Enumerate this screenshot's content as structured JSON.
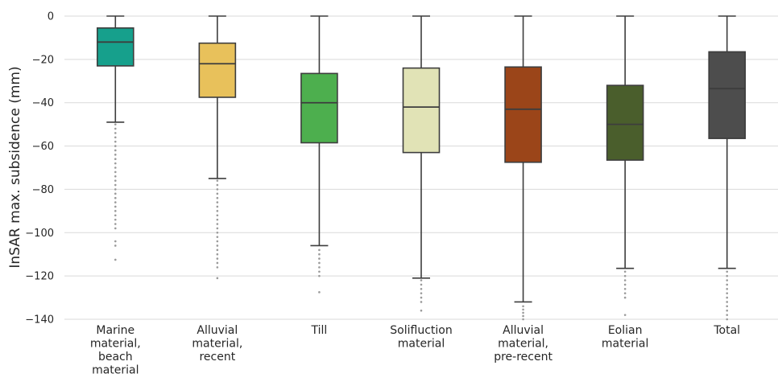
{
  "chart_data": {
    "type": "box",
    "title": "",
    "xlabel": "",
    "ylabel": "InSAR max. subsidence (mm)",
    "ylim": [
      -140,
      5
    ],
    "yticks": [
      0,
      -20,
      -40,
      -60,
      -80,
      -100,
      -120,
      -140
    ],
    "ytick_labels": [
      "0",
      "−20",
      "−40",
      "−60",
      "−80",
      "−100",
      "−120",
      "−140"
    ],
    "grid": "horizontal",
    "boxes": [
      {
        "label_lines": [
          "Marine",
          "material,",
          "beach",
          "material"
        ],
        "color": "#16a08c",
        "whisker_high": 0,
        "q3": -5.5,
        "median": -12,
        "q1": -23,
        "whisker_low": -49,
        "outliers": [
          -50,
          -52,
          -54,
          -56,
          -58,
          -60,
          -62,
          -64,
          -66,
          -68,
          -70,
          -72,
          -74,
          -76,
          -78,
          -80,
          -82,
          -84,
          -86,
          -88,
          -90,
          -92,
          -94,
          -96,
          -98,
          -104,
          -106,
          -112.5
        ]
      },
      {
        "label_lines": [
          "Alluvial",
          "material,",
          "recent"
        ],
        "color": "#e8c15b",
        "whisker_high": 0,
        "q3": -12.5,
        "median": -22,
        "q1": -37.5,
        "whisker_low": -75,
        "outliers": [
          -76,
          -78,
          -80,
          -82,
          -84,
          -86,
          -88,
          -90,
          -92,
          -94,
          -96,
          -98,
          -100,
          -102,
          -104,
          -106,
          -108,
          -110,
          -112,
          -114,
          -116,
          -121
        ]
      },
      {
        "label_lines": [
          "Till"
        ],
        "color": "#4daf4e",
        "whisker_high": 0,
        "q3": -26.5,
        "median": -40,
        "q1": -58.5,
        "whisker_low": -106,
        "outliers": [
          -108,
          -110,
          -112,
          -114,
          -116,
          -118,
          -120,
          -127.5
        ]
      },
      {
        "label_lines": [
          "Solifluction",
          "material"
        ],
        "color": "#e1e3b6",
        "whisker_high": 0,
        "q3": -24,
        "median": -42,
        "q1": -63,
        "whisker_low": -121,
        "outliers": [
          -122,
          -124,
          -126,
          -128,
          -130,
          -132,
          -136
        ]
      },
      {
        "label_lines": [
          "Alluvial",
          "material,",
          "pre-recent"
        ],
        "color": "#9b4519",
        "whisker_high": 0,
        "q3": -23.5,
        "median": -43,
        "q1": -67.5,
        "whisker_low": -132,
        "outliers": [
          -134,
          -135.5,
          -137,
          -138.5,
          -140
        ]
      },
      {
        "label_lines": [
          "Eolian",
          "material"
        ],
        "color": "#4a5e2c",
        "whisker_high": 0,
        "q3": -32,
        "median": -50,
        "q1": -66.5,
        "whisker_low": -116.5,
        "outliers": [
          -118,
          -120,
          -122,
          -124,
          -126,
          -128,
          -130,
          -138
        ]
      },
      {
        "label_lines": [
          "Total"
        ],
        "color": "#4d4d4d",
        "whisker_high": 0,
        "q3": -16.5,
        "median": -33.5,
        "q1": -56.5,
        "whisker_low": -116.5,
        "outliers": [
          -118,
          -120,
          -122,
          -124,
          -126,
          -128,
          -130,
          -132,
          -134,
          -136,
          -138,
          -140
        ]
      }
    ]
  }
}
